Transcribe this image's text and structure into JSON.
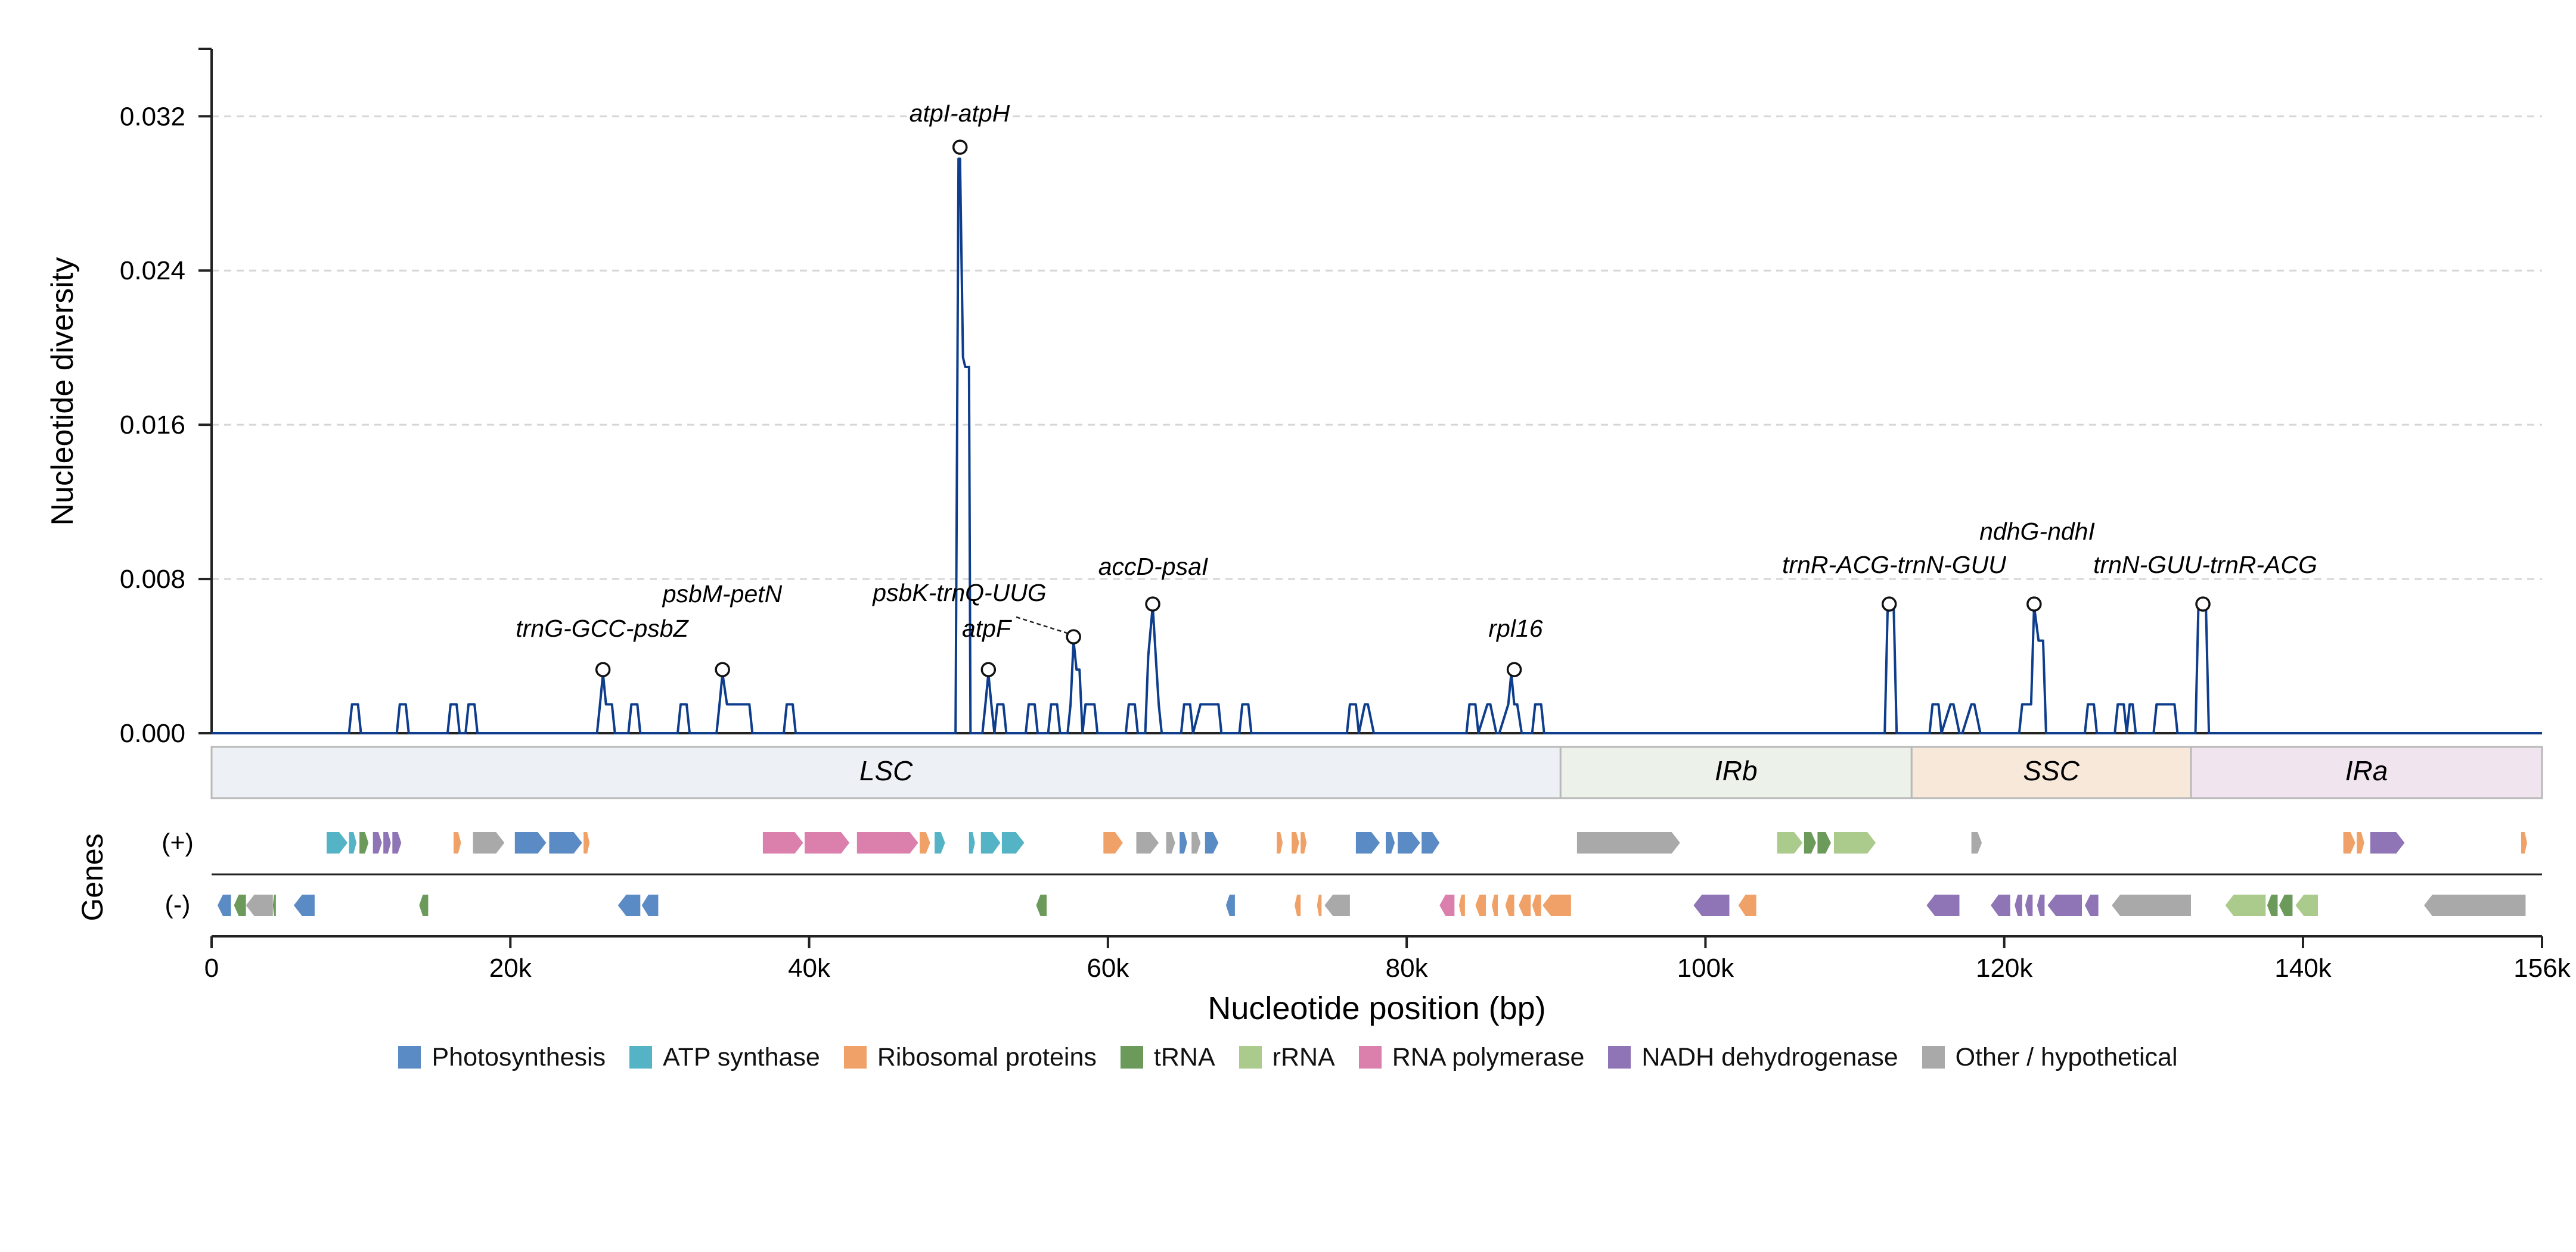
{
  "chart_data": {
    "type": "line",
    "ylabel": "Nucleotide diversity",
    "xlabel": "Nucleotide position (bp)",
    "genes_label": "Genes",
    "strand_labels": {
      "plus": "(+)",
      "minus": "(-)"
    },
    "xlim": [
      0,
      156000
    ],
    "ylim": [
      0,
      0.0355
    ],
    "yticks": [
      {
        "value": 0.0,
        "label": "0.000"
      },
      {
        "value": 0.008,
        "label": "0.008"
      },
      {
        "value": 0.016,
        "label": "0.016"
      },
      {
        "value": 0.024,
        "label": "0.024"
      },
      {
        "value": 0.032,
        "label": "0.032"
      }
    ],
    "xticks": [
      {
        "value": 0,
        "label": "0"
      },
      {
        "value": 20000,
        "label": "20k"
      },
      {
        "value": 40000,
        "label": "40k"
      },
      {
        "value": 60000,
        "label": "60k"
      },
      {
        "value": 80000,
        "label": "80k"
      },
      {
        "value": 100000,
        "label": "100k"
      },
      {
        "value": 120000,
        "label": "120k"
      },
      {
        "value": 140000,
        "label": "140k"
      },
      {
        "value": 156000,
        "label": "156k"
      }
    ],
    "grid": "horizontal dashed",
    "line_color": "#0d3d8c",
    "series": [
      {
        "x": [
          0,
          9200,
          9400,
          9800,
          10000,
          12400,
          12600,
          13000,
          13200,
          15800,
          16000,
          16400,
          16600,
          17000,
          17200,
          17600,
          17800,
          25800,
          26000,
          26200,
          26400,
          26800,
          27000,
          27900,
          28100,
          28500,
          28700,
          31200,
          31400,
          31800,
          32000,
          33800,
          34000,
          34200,
          34500,
          34800,
          35000,
          36000,
          36200,
          38300,
          38500,
          38900,
          39100,
          49800,
          50000,
          50100,
          50300,
          50450,
          50700,
          50800,
          51600,
          51800,
          52000,
          52200,
          52400,
          52600,
          53000,
          53200,
          54500,
          54700,
          55100,
          55300,
          56000,
          56200,
          56600,
          56800,
          57300,
          57500,
          57700,
          57900,
          58100,
          58300,
          58500,
          58700,
          59100,
          59300,
          61200,
          61400,
          61800,
          62000,
          62500,
          62700,
          63000,
          63200,
          63400,
          63600,
          64900,
          65100,
          65500,
          65700,
          66200,
          66400,
          67400,
          67600,
          68800,
          69000,
          69400,
          69600,
          76000,
          76200,
          76600,
          76800,
          77200,
          77400,
          77800,
          78000,
          84000,
          84200,
          84600,
          84800,
          85400,
          85600,
          86000,
          86200,
          86800,
          87000,
          87200,
          87400,
          87700,
          87900,
          88400,
          88600,
          89000,
          89200,
          112000,
          112200,
          112600,
          112800,
          115000,
          115200,
          115600,
          115800,
          116400,
          116600,
          117000,
          117200,
          117800,
          118000,
          118400,
          118600,
          121000,
          121200,
          121800,
          122000,
          122300,
          122600,
          122800,
          125400,
          125600,
          126000,
          126200,
          127400,
          127600,
          128000,
          128200,
          128400,
          128600,
          128800,
          129000,
          130000,
          130200,
          131400,
          131600,
          132800,
          133000,
          133500,
          133700,
          156000
        ],
        "y": [
          0,
          0,
          0.0015,
          0.0015,
          0,
          0,
          0.0015,
          0.0015,
          0,
          0,
          0.0015,
          0.0015,
          0,
          0,
          0.0015,
          0.0015,
          0,
          0,
          0.0015,
          0.0031,
          0.0015,
          0.0015,
          0,
          0,
          0.0015,
          0.0015,
          0,
          0,
          0.0015,
          0.0015,
          0,
          0,
          0.0015,
          0.0031,
          0.0015,
          0.0015,
          0.0015,
          0.0015,
          0,
          0,
          0.0015,
          0.0015,
          0,
          0,
          0.0298,
          0.0298,
          0.0195,
          0.019,
          0.019,
          0,
          0,
          0.0015,
          0.0031,
          0.0015,
          0,
          0.0015,
          0.0015,
          0,
          0,
          0.0015,
          0.0015,
          0,
          0,
          0.0015,
          0.0015,
          0,
          0,
          0.0015,
          0.0048,
          0.0033,
          0.0033,
          0,
          0.0015,
          0.0015,
          0.0015,
          0,
          0,
          0.0015,
          0.0015,
          0,
          0,
          0.004,
          0.0066,
          0.004,
          0.0015,
          0,
          0,
          0.0015,
          0.0015,
          0,
          0.0015,
          0.0015,
          0.0015,
          0,
          0,
          0.0015,
          0.0015,
          0,
          0,
          0.0015,
          0.0015,
          0,
          0.0015,
          0.0015,
          0,
          0,
          0,
          0.0015,
          0.0015,
          0,
          0.0015,
          0.0015,
          0,
          0,
          0.0015,
          0.0031,
          0.0015,
          0.0015,
          0,
          0,
          0,
          0.0015,
          0.0015,
          0,
          0,
          0.0066,
          0.0066,
          0,
          0,
          0.0015,
          0.0015,
          0,
          0.0015,
          0.0015,
          0,
          0,
          0.0015,
          0.0015,
          0,
          0,
          0,
          0.0015,
          0.0015,
          0.0066,
          0.0048,
          0.0048,
          0,
          0,
          0.0015,
          0.0015,
          0,
          0,
          0.0015,
          0.0015,
          0,
          0.0015,
          0.0015,
          0,
          0,
          0,
          0.0015,
          0.0015,
          0,
          0,
          0.0066,
          0.0066,
          0,
          0
        ]
      }
    ],
    "annotations": [
      {
        "label": "trnG-GCC-psbZ",
        "x": 26200,
        "y": 0.0033
      },
      {
        "label": "psbM-petN",
        "x": 34200,
        "y": 0.0033
      },
      {
        "label": "atpI-atpH",
        "x": 50100,
        "y": 0.0304
      },
      {
        "label": "atpF",
        "x": 52000,
        "y": 0.0033
      },
      {
        "label": "psbK-trnQ-UUG",
        "x": 57700,
        "y": 0.005
      },
      {
        "label": "accD-psaI",
        "x": 63000,
        "y": 0.0067
      },
      {
        "label": "rpl16",
        "x": 87200,
        "y": 0.0033
      },
      {
        "label": "trnR-ACG-trnN-GUU",
        "x": 112300,
        "y": 0.0067
      },
      {
        "label": "ndhG-ndhI",
        "x": 122000,
        "y": 0.0067
      },
      {
        "label": "trnN-GUU-trnR-ACG",
        "x": 133300,
        "y": 0.0067
      }
    ],
    "regions": [
      {
        "label": "LSC",
        "start": 0,
        "end": 90300,
        "color": "#edf1f5"
      },
      {
        "label": "IRb",
        "start": 90300,
        "end": 113800,
        "color": "#ecf2ea"
      },
      {
        "label": "SSC",
        "start": 113800,
        "end": 132500,
        "color": "#f8e8da"
      },
      {
        "label": "IRa",
        "start": 132500,
        "end": 156000,
        "color": "#f0e4ef"
      }
    ],
    "gene_categories": [
      {
        "key": "photo",
        "name": "Photosynthesis",
        "color": "#5b8bc4"
      },
      {
        "key": "atp",
        "name": "ATP synthase",
        "color": "#55b3c6"
      },
      {
        "key": "ribo",
        "name": "Ribosomal proteins",
        "color": "#f0a168"
      },
      {
        "key": "trna",
        "name": "tRNA",
        "color": "#6b9a5a"
      },
      {
        "key": "rrna",
        "name": "rRNA",
        "color": "#aacb8c"
      },
      {
        "key": "rnapol",
        "name": "RNA polymerase",
        "color": "#db80ad"
      },
      {
        "key": "ndh",
        "name": "NADH dehydrogenase",
        "color": "#8f74b6"
      },
      {
        "key": "other",
        "name": "Other / hypothetical",
        "color": "#a9a9a9"
      }
    ],
    "genes_plus": [
      {
        "start": 7700,
        "end": 9100,
        "cat": "atp"
      },
      {
        "start": 9200,
        "end": 9700,
        "cat": "atp"
      },
      {
        "start": 9900,
        "end": 10500,
        "cat": "trna"
      },
      {
        "start": 10800,
        "end": 11400,
        "cat": "ndh"
      },
      {
        "start": 11500,
        "end": 12000,
        "cat": "ndh"
      },
      {
        "start": 12100,
        "end": 12700,
        "cat": "ndh"
      },
      {
        "start": 16200,
        "end": 16700,
        "cat": "ribo"
      },
      {
        "start": 17500,
        "end": 19600,
        "cat": "other"
      },
      {
        "start": 20300,
        "end": 22400,
        "cat": "photo"
      },
      {
        "start": 22600,
        "end": 24800,
        "cat": "photo"
      },
      {
        "start": 24900,
        "end": 25300,
        "cat": "ribo"
      },
      {
        "start": 36900,
        "end": 39600,
        "cat": "rnapol"
      },
      {
        "start": 39700,
        "end": 42700,
        "cat": "rnapol"
      },
      {
        "start": 43200,
        "end": 47300,
        "cat": "rnapol"
      },
      {
        "start": 47400,
        "end": 48100,
        "cat": "ribo"
      },
      {
        "start": 48400,
        "end": 49100,
        "cat": "atp"
      },
      {
        "start": 50700,
        "end": 51100,
        "cat": "atp"
      },
      {
        "start": 51500,
        "end": 52800,
        "cat": "atp"
      },
      {
        "start": 52900,
        "end": 54400,
        "cat": "atp"
      },
      {
        "start": 59700,
        "end": 61000,
        "cat": "ribo"
      },
      {
        "start": 61900,
        "end": 63400,
        "cat": "other"
      },
      {
        "start": 63900,
        "end": 64500,
        "cat": "other"
      },
      {
        "start": 64800,
        "end": 65300,
        "cat": "photo"
      },
      {
        "start": 65600,
        "end": 66200,
        "cat": "other"
      },
      {
        "start": 66500,
        "end": 67400,
        "cat": "photo"
      },
      {
        "start": 71300,
        "end": 71700,
        "cat": "ribo"
      },
      {
        "start": 72300,
        "end": 72800,
        "cat": "ribo"
      },
      {
        "start": 72900,
        "end": 73300,
        "cat": "ribo"
      },
      {
        "start": 76600,
        "end": 78200,
        "cat": "photo"
      },
      {
        "start": 78600,
        "end": 79200,
        "cat": "photo"
      },
      {
        "start": 79400,
        "end": 80900,
        "cat": "photo"
      },
      {
        "start": 81000,
        "end": 82200,
        "cat": "photo"
      },
      {
        "start": 91400,
        "end": 98300,
        "cat": "other"
      },
      {
        "start": 104800,
        "end": 106500,
        "cat": "rrna"
      },
      {
        "start": 106600,
        "end": 107400,
        "cat": "trna"
      },
      {
        "start": 107500,
        "end": 108400,
        "cat": "trna"
      },
      {
        "start": 108600,
        "end": 111400,
        "cat": "rrna"
      },
      {
        "start": 117800,
        "end": 118500,
        "cat": "other"
      },
      {
        "start": 142700,
        "end": 143500,
        "cat": "ribo"
      },
      {
        "start": 143600,
        "end": 144100,
        "cat": "ribo"
      },
      {
        "start": 144500,
        "end": 146800,
        "cat": "ndh"
      },
      {
        "start": 154600,
        "end": 155000,
        "cat": "ribo"
      }
    ],
    "genes_minus": [
      {
        "start": 400,
        "end": 1300,
        "cat": "photo"
      },
      {
        "start": 1500,
        "end": 2300,
        "cat": "trna"
      },
      {
        "start": 2300,
        "end": 4100,
        "cat": "other"
      },
      {
        "start": 4100,
        "end": 4300,
        "cat": "trna"
      },
      {
        "start": 5500,
        "end": 6900,
        "cat": "photo"
      },
      {
        "start": 13900,
        "end": 14500,
        "cat": "trna"
      },
      {
        "start": 27200,
        "end": 28700,
        "cat": "photo"
      },
      {
        "start": 28800,
        "end": 29900,
        "cat": "photo"
      },
      {
        "start": 55200,
        "end": 55900,
        "cat": "trna"
      },
      {
        "start": 67900,
        "end": 68500,
        "cat": "photo"
      },
      {
        "start": 72500,
        "end": 72900,
        "cat": "ribo"
      },
      {
        "start": 74000,
        "end": 74300,
        "cat": "ribo"
      },
      {
        "start": 74500,
        "end": 76200,
        "cat": "other"
      },
      {
        "start": 82200,
        "end": 83200,
        "cat": "rnapol"
      },
      {
        "start": 83500,
        "end": 83900,
        "cat": "ribo"
      },
      {
        "start": 84600,
        "end": 85300,
        "cat": "ribo"
      },
      {
        "start": 85700,
        "end": 86100,
        "cat": "ribo"
      },
      {
        "start": 86600,
        "end": 87200,
        "cat": "ribo"
      },
      {
        "start": 87500,
        "end": 88300,
        "cat": "ribo"
      },
      {
        "start": 88400,
        "end": 89000,
        "cat": "ribo"
      },
      {
        "start": 89100,
        "end": 91000,
        "cat": "ribo"
      },
      {
        "start": 99200,
        "end": 101600,
        "cat": "ndh"
      },
      {
        "start": 102200,
        "end": 103400,
        "cat": "ribo"
      },
      {
        "start": 114800,
        "end": 117000,
        "cat": "ndh"
      },
      {
        "start": 119100,
        "end": 120400,
        "cat": "ndh"
      },
      {
        "start": 120700,
        "end": 121200,
        "cat": "ndh"
      },
      {
        "start": 121400,
        "end": 121900,
        "cat": "ndh"
      },
      {
        "start": 122200,
        "end": 122700,
        "cat": "ndh"
      },
      {
        "start": 122900,
        "end": 125200,
        "cat": "ndh"
      },
      {
        "start": 125400,
        "end": 126300,
        "cat": "ndh"
      },
      {
        "start": 127200,
        "end": 132500,
        "cat": "other"
      },
      {
        "start": 134800,
        "end": 137500,
        "cat": "rrna"
      },
      {
        "start": 137600,
        "end": 138300,
        "cat": "trna"
      },
      {
        "start": 138400,
        "end": 139300,
        "cat": "trna"
      },
      {
        "start": 139500,
        "end": 141000,
        "cat": "rrna"
      },
      {
        "start": 148100,
        "end": 154900,
        "cat": "other"
      }
    ]
  }
}
